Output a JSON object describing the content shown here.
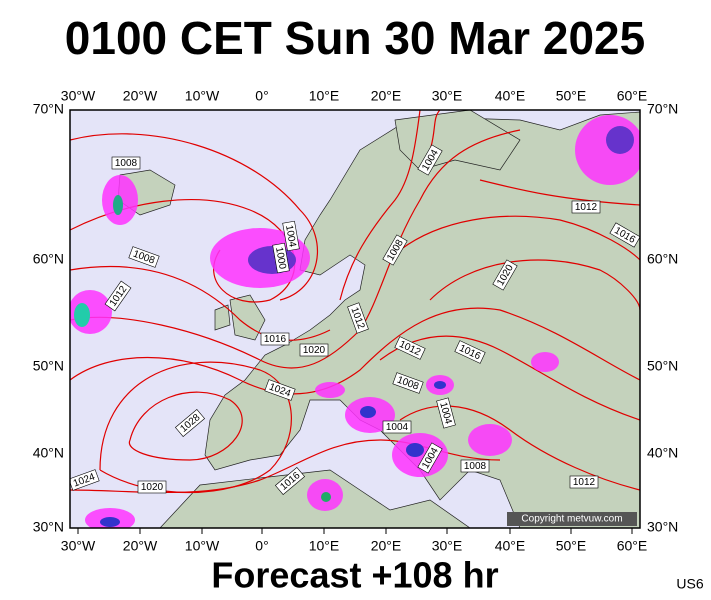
{
  "header": {
    "title": "0100 CET Sun 30 Mar 2025"
  },
  "map": {
    "longitude_labels": [
      "30°W",
      "20°W",
      "10°W",
      "0°",
      "10°E",
      "20°E",
      "30°E",
      "40°E",
      "50°E",
      "60°E"
    ],
    "latitude_labels": [
      "70°N",
      "60°N",
      "50°N",
      "40°N",
      "30°N"
    ],
    "isobar_labels": [
      "1008",
      "1004",
      "1012",
      "1016",
      "1004",
      "1000",
      "1008",
      "1008",
      "1020",
      "1012",
      "1012",
      "1016",
      "1020",
      "1012",
      "1016",
      "1024",
      "1008",
      "1004",
      "1028",
      "1004",
      "1004",
      "1008",
      "1016",
      "1024",
      "1020",
      "1012"
    ],
    "copyright": "Copyright metvuw.com"
  },
  "footer": {
    "forecast": "Forecast +108 hr",
    "code": "US6"
  }
}
